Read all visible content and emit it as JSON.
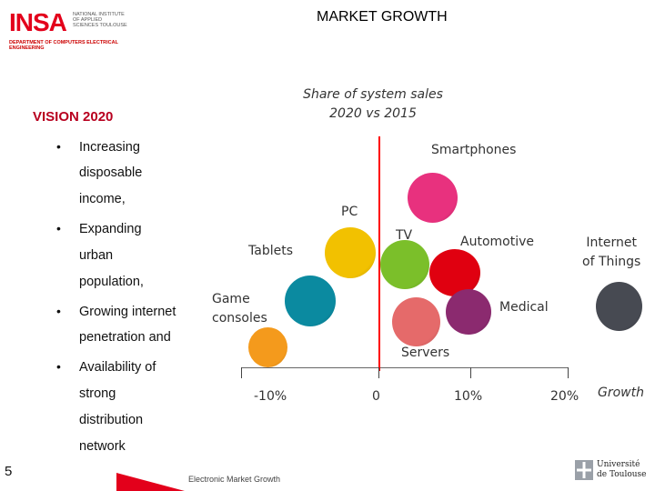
{
  "header": {
    "logo_text": "INSA",
    "logo_subtext": "NATIONAL INSTITUTE OF APPLIED SCIENCES TOULOUSE",
    "department": "DEPARTMENT OF COMPUTERS ELECTRICAL ENGINEERING",
    "title": "MARKET GROWTH"
  },
  "subtitle_line1": "Share of system sales",
  "subtitle_line2": "2020 vs 2015",
  "vision": "VISION 2020",
  "bullets": [
    {
      "lines": [
        "Increasing",
        "disposable",
        "income,"
      ]
    },
    {
      "lines": [
        "Expanding",
        "urban",
        "population,"
      ]
    },
    {
      "lines": [
        "Growing internet",
        "penetration and"
      ]
    },
    {
      "lines": [
        "Availability of",
        "strong",
        "distribution",
        "network"
      ]
    }
  ],
  "chart_data": {
    "type": "scatter",
    "xlabel": "Growth",
    "x_ticks": [
      "-10%",
      "0",
      "10%",
      "20%"
    ],
    "points": [
      {
        "name": "Smartphones",
        "label": "Smartphones",
        "x": 6,
        "color": "#e8317e"
      },
      {
        "name": "PC",
        "label": "PC",
        "x": -4,
        "color": "#f2c100"
      },
      {
        "name": "TV",
        "label": "TV",
        "x": 6,
        "color": "#7bbf2a"
      },
      {
        "name": "Automotive",
        "label": "Automotive",
        "x": 9,
        "color": "#e00010"
      },
      {
        "name": "Internet of Things",
        "label_lines": [
          "Internet",
          "of Things"
        ],
        "x": 26,
        "color": "#474a52"
      },
      {
        "name": "Tablets",
        "label": "Tablets",
        "x": -9,
        "color": "#0b8aa0"
      },
      {
        "name": "Game consoles",
        "label_lines": [
          "Game",
          "consoles"
        ],
        "x": -12,
        "color": "#f49a1c"
      },
      {
        "name": "Medical",
        "label": "Medical",
        "x": 12,
        "color": "#8b2a6f"
      },
      {
        "name": "Servers",
        "label": "Servers",
        "x": 4,
        "color": "#e56a6a"
      }
    ]
  },
  "page_number": "5",
  "footer": "Electronic Market Growth",
  "toulouse_logo_line1": "Université",
  "toulouse_logo_line2": "de Toulouse"
}
